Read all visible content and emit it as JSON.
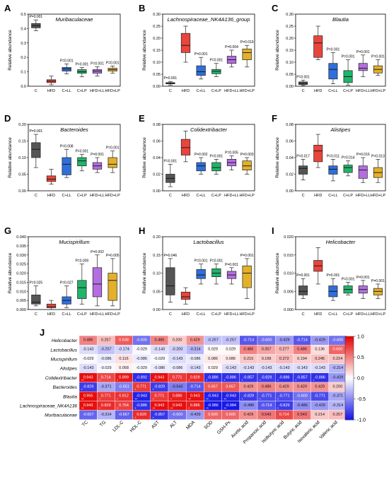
{
  "categories": [
    "C",
    "HFD",
    "C+LL",
    "C+LP",
    "HFD+LL",
    "HFD+LP"
  ],
  "colors": [
    "#555555",
    "#e8453c",
    "#2f6fdb",
    "#21b36b",
    "#b46ee0",
    "#e3b02a"
  ],
  "ylabel": "Relative abundance",
  "chart_data": [
    {
      "type": "box",
      "panel": "A",
      "title": "Muribaculaceae",
      "ylim": [
        0,
        0.5
      ],
      "ticks": [
        0,
        0.1,
        0.2,
        0.3,
        0.4,
        0.5
      ],
      "tick_labels": [
        "0.0",
        "0.1",
        "0.2",
        "0.3",
        "0.4",
        "0.5"
      ],
      "boxes": [
        [
          0.385,
          0.405,
          0.42,
          0.435,
          0.46
        ],
        [
          0.01,
          0.025,
          0.035,
          0.045,
          0.07
        ],
        [
          0.085,
          0.105,
          0.12,
          0.13,
          0.155
        ],
        [
          0.065,
          0.09,
          0.1,
          0.115,
          0.13
        ],
        [
          0.07,
          0.09,
          0.105,
          0.115,
          0.135
        ],
        [
          0.09,
          0.105,
          0.115,
          0.125,
          0.14
        ]
      ],
      "pvals": [
        "P=0.001",
        "",
        "P=0.001",
        "P=0.001",
        "P=0.001",
        "P=0.001"
      ]
    },
    {
      "type": "box",
      "panel": "B",
      "title": "Lachnospiraceae_NK4A136_group",
      "ylim": [
        0,
        0.3
      ],
      "ticks": [
        0,
        0.05,
        0.1,
        0.15,
        0.2,
        0.25,
        0.3
      ],
      "tick_labels": [
        "0.00",
        "0.05",
        "0.10",
        "0.15",
        "0.20",
        "0.25",
        "0.30"
      ],
      "boxes": [
        [
          0.005,
          0.01,
          0.012,
          0.015,
          0.02
        ],
        [
          0.1,
          0.14,
          0.17,
          0.22,
          0.25
        ],
        [
          0.03,
          0.045,
          0.06,
          0.085,
          0.12
        ],
        [
          0.04,
          0.052,
          0.062,
          0.07,
          0.095
        ],
        [
          0.08,
          0.095,
          0.11,
          0.125,
          0.15
        ],
        [
          0.08,
          0.11,
          0.14,
          0.155,
          0.17
        ]
      ],
      "pvals": [
        "P=0.001",
        "",
        "P=0.001",
        "P=0.001",
        "P=0.004",
        "P=0.019"
      ]
    },
    {
      "type": "box",
      "panel": "C",
      "title": "Blautia",
      "ylim": [
        0,
        0.3
      ],
      "ticks": [
        0,
        0.05,
        0.1,
        0.15,
        0.2,
        0.25,
        0.3
      ],
      "tick_labels": [
        "0.00",
        "0.05",
        "0.10",
        "0.15",
        "0.20",
        "0.25",
        "0.30"
      ],
      "boxes": [
        [
          0.003,
          0.007,
          0.012,
          0.018,
          0.025
        ],
        [
          0.11,
          0.12,
          0.18,
          0.21,
          0.25
        ],
        [
          0.01,
          0.03,
          0.07,
          0.095,
          0.14
        ],
        [
          0.005,
          0.015,
          0.04,
          0.065,
          0.11
        ],
        [
          0.04,
          0.065,
          0.075,
          0.095,
          0.13
        ],
        [
          0.045,
          0.055,
          0.07,
          0.085,
          0.11
        ]
      ],
      "pvals": [
        "P=0.001",
        "",
        "P=0.001",
        "P=0.001",
        "P=0.001",
        "P=0.001"
      ]
    },
    {
      "type": "box",
      "panel": "D",
      "title": "Bacteroides",
      "ylim": [
        0,
        0.2
      ],
      "ticks": [
        0,
        0.05,
        0.1,
        0.15,
        0.2
      ],
      "tick_labels": [
        "0.00",
        "0.05",
        "0.10",
        "0.15",
        "0.20"
      ],
      "boxes": [
        [
          0.07,
          0.1,
          0.125,
          0.145,
          0.17
        ],
        [
          0.02,
          0.028,
          0.035,
          0.045,
          0.065
        ],
        [
          0.04,
          0.048,
          0.08,
          0.1,
          0.125
        ],
        [
          0.06,
          0.075,
          0.09,
          0.1,
          0.11
        ],
        [
          0.055,
          0.065,
          0.075,
          0.085,
          0.1
        ],
        [
          0.055,
          0.07,
          0.08,
          0.1,
          0.12
        ]
      ],
      "pvals": [
        "P=0.001",
        "",
        "P=0.008",
        "P=0.001",
        "P=0.001",
        "P=0.001"
      ]
    },
    {
      "type": "box",
      "panel": "E",
      "title": "Colidextribacter",
      "ylim": [
        0,
        0.08
      ],
      "ticks": [
        0,
        0.02,
        0.04,
        0.06,
        0.08
      ],
      "tick_labels": [
        "0.00",
        "0.02",
        "0.04",
        "0.06",
        "0.08"
      ],
      "boxes": [
        [
          0.005,
          0.01,
          0.015,
          0.02,
          0.032
        ],
        [
          0.035,
          0.043,
          0.052,
          0.062,
          0.072
        ],
        [
          0.02,
          0.024,
          0.03,
          0.034,
          0.04
        ],
        [
          0.02,
          0.024,
          0.028,
          0.034,
          0.038
        ],
        [
          0.025,
          0.03,
          0.034,
          0.038,
          0.042
        ],
        [
          0.02,
          0.025,
          0.03,
          0.036,
          0.04
        ]
      ],
      "pvals": [
        "P=0.001",
        "",
        "P=0.002",
        "P=0.001",
        "P=0.005",
        "P=0.003"
      ]
    },
    {
      "type": "box",
      "panel": "F",
      "title": "Alistipes",
      "ylim": [
        0,
        0.08
      ],
      "ticks": [
        0,
        0.02,
        0.04,
        0.06,
        0.08
      ],
      "tick_labels": [
        "0.00",
        "0.02",
        "0.04",
        "0.06",
        "0.08"
      ],
      "boxes": [
        [
          0.013,
          0.02,
          0.027,
          0.03,
          0.038
        ],
        [
          0.028,
          0.035,
          0.048,
          0.055,
          0.068
        ],
        [
          0.012,
          0.02,
          0.026,
          0.03,
          0.038
        ],
        [
          0.018,
          0.022,
          0.028,
          0.031,
          0.036
        ],
        [
          0.01,
          0.015,
          0.025,
          0.03,
          0.04
        ],
        [
          0.01,
          0.016,
          0.022,
          0.028,
          0.038
        ]
      ],
      "pvals": [
        "P=0.017",
        "",
        "P=0.011",
        "P=0.014",
        "P=0.016",
        "P=0.013"
      ]
    },
    {
      "type": "box",
      "panel": "G",
      "title": "Mucispirillum",
      "ylim": [
        0,
        0.04
      ],
      "ticks": [
        0,
        0.005,
        0.01,
        0.015,
        0.02,
        0.025,
        0.03,
        0.035,
        0.04
      ],
      "tick_labels": [
        "0.000",
        "0.005",
        "0.010",
        "0.015",
        "0.020",
        "0.025",
        "0.030",
        "0.035",
        "0.040"
      ],
      "boxes": [
        [
          0.002,
          0.003,
          0.004,
          0.008,
          0.013
        ],
        [
          0.0,
          0.001,
          0.0015,
          0.003,
          0.005
        ],
        [
          0.001,
          0.003,
          0.005,
          0.007,
          0.013
        ],
        [
          0.003,
          0.006,
          0.012,
          0.016,
          0.025
        ],
        [
          0.002,
          0.007,
          0.014,
          0.023,
          0.03
        ],
        [
          0.002,
          0.005,
          0.016,
          0.02,
          0.028
        ]
      ],
      "pvals": [
        "P=0.025",
        "",
        "P=0.027",
        "P=0.009",
        "P=0.002",
        "P=0.005"
      ]
    },
    {
      "type": "box",
      "panel": "H",
      "title": "Lactobacillus",
      "ylim": [
        0,
        0.2
      ],
      "ticks": [
        0,
        0.05,
        0.1,
        0.15,
        0.2
      ],
      "tick_labels": [
        "0.00",
        "0.05",
        "0.10",
        "0.15",
        "0.20"
      ],
      "boxes": [
        [
          0.02,
          0.04,
          0.065,
          0.115,
          0.14
        ],
        [
          0.015,
          0.028,
          0.035,
          0.048,
          0.06
        ],
        [
          0.07,
          0.085,
          0.095,
          0.11,
          0.125
        ],
        [
          0.07,
          0.09,
          0.1,
          0.112,
          0.125
        ],
        [
          0.07,
          0.085,
          0.095,
          0.105,
          0.115
        ],
        [
          0.03,
          0.06,
          0.1,
          0.12,
          0.14
        ]
      ],
      "pvals": [
        "P=0.046",
        "",
        "P=0.001",
        "P=0.001",
        "P=0.001",
        "P=0.001"
      ]
    },
    {
      "type": "box",
      "panel": "I",
      "title": "Helicobacter",
      "ylim": [
        0,
        0.02
      ],
      "ticks": [
        0,
        0.005,
        0.01,
        0.015,
        0.02
      ],
      "tick_labels": [
        "0.000",
        "0.005",
        "0.010",
        "0.015",
        "0.020"
      ],
      "boxes": [
        [
          0.003,
          0.004,
          0.005,
          0.0065,
          0.0085
        ],
        [
          0.007,
          0.0105,
          0.012,
          0.0135,
          0.017
        ],
        [
          0.0025,
          0.0035,
          0.005,
          0.0065,
          0.0085
        ],
        [
          0.004,
          0.0045,
          0.0055,
          0.0065,
          0.0075
        ],
        [
          0.003,
          0.0045,
          0.0055,
          0.0065,
          0.008
        ],
        [
          0.003,
          0.004,
          0.005,
          0.0058,
          0.007
        ]
      ],
      "pvals": [
        "P=0.001",
        "",
        "P=0.001",
        "P=0.001",
        "P=0.001",
        "P=0.001"
      ]
    },
    {
      "type": "heatmap",
      "panel": "J",
      "rows": [
        "Helicobacter",
        "Lactobacillus",
        "Mucispirillum",
        "Alistipes",
        "Colidextribacter",
        "Bacteroides",
        "Blautia",
        "Lachnospiraceae_NK4A136",
        "Muribaculaceae"
      ],
      "cols": [
        "TC",
        "TG",
        "LDL-C",
        "HDL-C",
        "AST",
        "ALT",
        "MDA",
        "SOD",
        "GSH-Px",
        "Acetic acid",
        "Propanoic acid",
        "Isobutyric acid",
        "Butyric acid",
        "Isovaleric acid",
        "Valeric acid"
      ],
      "values": [
        [
          0.486,
          0.257,
          0.638,
          -0.6,
          0.486,
          0.2,
          0.429,
          -0.257,
          -0.257,
          -0.714,
          -0.6,
          -0.429,
          -0.714,
          -0.429,
          -0.6
        ],
        [
          -0.143,
          -0.257,
          -0.174,
          -0.029,
          -0.143,
          -0.2,
          -0.314,
          0.029,
          0.029,
          0.486,
          0.357,
          0.277,
          0.486,
          0.136,
          0.6
        ],
        [
          -0.029,
          -0.086,
          0.116,
          -0.086,
          -0.029,
          -0.143,
          -0.086,
          0.086,
          0.086,
          0.215,
          0.199,
          0.272,
          0.194,
          0.245,
          0.224
        ],
        [
          -0.143,
          -0.029,
          0.058,
          -0.029,
          -0.086,
          -0.086,
          -0.143,
          0.029,
          -0.143,
          -0.143,
          -0.143,
          -0.143,
          -0.143,
          -0.143,
          -0.314
        ],
        [
          0.943,
          0.714,
          0.899,
          -0.892,
          0.943,
          0.771,
          0.829,
          -0.886,
          -0.886,
          -0.857,
          -0.829,
          -0.886,
          -0.857,
          -0.886,
          -0.429
        ],
        [
          -0.829,
          -0.371,
          -0.551,
          0.771,
          -0.829,
          -0.543,
          -0.714,
          0.657,
          0.657,
          0.429,
          0.486,
          0.429,
          0.429,
          0.429,
          0.2
        ],
        [
          0.955,
          0.771,
          0.812,
          -0.943,
          0.771,
          0.886,
          0.943,
          -0.943,
          -0.943,
          -0.829,
          -0.771,
          -0.771,
          -0.6,
          -0.771,
          -0.371
        ],
        [
          0.943,
          0.829,
          0.754,
          -0.886,
          0.943,
          0.943,
          0.886,
          -0.986,
          -0.984,
          -0.486,
          -0.714,
          -0.829,
          -0.486,
          -0.429,
          -0.314
        ],
        [
          -0.657,
          -0.314,
          -0.667,
          0.829,
          -0.857,
          -0.6,
          -0.429,
          0.6,
          0.6,
          0.429,
          0.543,
          0.714,
          0.543,
          0.214,
          0.257
        ]
      ],
      "stars": [
        [
          "",
          "",
          "",
          "",
          "",
          "",
          "",
          "",
          "",
          "",
          "",
          "",
          "",
          "",
          ""
        ],
        [
          "",
          "",
          "",
          "",
          "",
          "",
          "",
          "",
          "",
          "",
          "",
          "",
          "",
          "",
          ""
        ],
        [
          "",
          "",
          "",
          "",
          "",
          "",
          "",
          "",
          "",
          "",
          "",
          "",
          "",
          "",
          ""
        ],
        [
          "",
          "",
          "",
          "",
          "",
          "",
          "",
          "",
          "",
          "",
          "",
          "",
          "",
          "",
          ""
        ],
        [
          "**",
          "*",
          "*",
          "*",
          "**",
          "*",
          "*",
          "*",
          "*",
          "*",
          "*",
          "*",
          "*",
          "*",
          ""
        ],
        [
          "*",
          "",
          "",
          "*",
          "*",
          "",
          "",
          "",
          "",
          "",
          "",
          "",
          "",
          "",
          ""
        ],
        [
          "**",
          "*",
          "*",
          "**",
          "*",
          "*",
          "**",
          "**",
          "**",
          "*",
          "*",
          "*",
          "",
          "",
          ""
        ],
        [
          "**",
          "*",
          "*",
          "*",
          "**",
          "**",
          "*",
          "**",
          "**",
          "",
          "",
          "*",
          "",
          "",
          ""
        ],
        [
          "",
          "",
          "",
          "*",
          "*",
          "",
          "",
          "",
          "",
          "",
          "",
          "",
          "",
          "",
          ""
        ]
      ],
      "colorbar": {
        "min": -1,
        "max": 1,
        "ticks": [
          "1.0",
          "0.5",
          "0.0",
          "-0.5",
          "-1.0"
        ]
      }
    }
  ]
}
